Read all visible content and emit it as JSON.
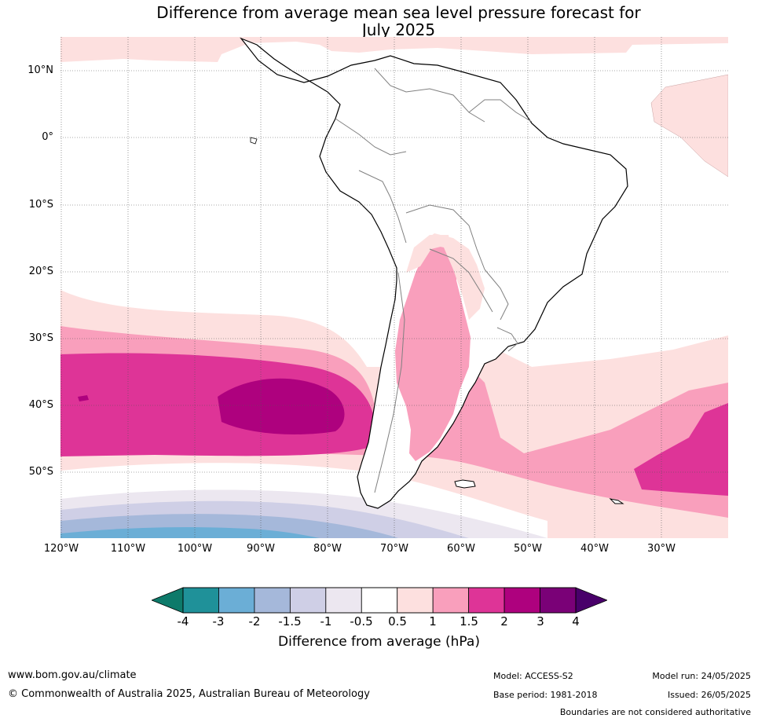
{
  "title": "Difference from average mean sea level pressure forecast for\nJuly 2025",
  "map": {
    "lat_labels": [
      "10°N",
      "0°",
      "10°S",
      "20°S",
      "30°S",
      "40°S",
      "50°S"
    ],
    "lon_labels": [
      "120°W",
      "110°W",
      "100°W",
      "90°W",
      "80°W",
      "70°W",
      "60°W",
      "50°W",
      "40°W",
      "30°W"
    ],
    "gridlines": true,
    "coastline_color": "#000000",
    "border_color": "#808080"
  },
  "colorbar": {
    "title": "Difference from average (hPa)",
    "tick_labels": [
      "-4",
      "-3",
      "-2",
      "-1.5",
      "-1",
      "-0.5",
      "0.5",
      "1",
      "1.5",
      "2",
      "3",
      "4"
    ],
    "colors": [
      "#0d7a6a",
      "#1f9199",
      "#6baed6",
      "#a5b8da",
      "#cfcfe6",
      "#ece7f0",
      "#ffffff",
      "#fde0df",
      "#f99fbc",
      "#de3497",
      "#ae017e",
      "#7a0177",
      "#49006a"
    ]
  },
  "footer": {
    "website": "www.bom.gov.au/climate",
    "copyright": "© Commonwealth of Australia 2025, Australian Bureau of Meteorology",
    "model": "Model: ACCESS-S2",
    "base_period": "Base period: 1981-2018",
    "model_run": "Model run: 24/05/2025",
    "issued": "Issued: 26/05/2025",
    "boundaries_note": "Boundaries are not considered authoritative"
  }
}
